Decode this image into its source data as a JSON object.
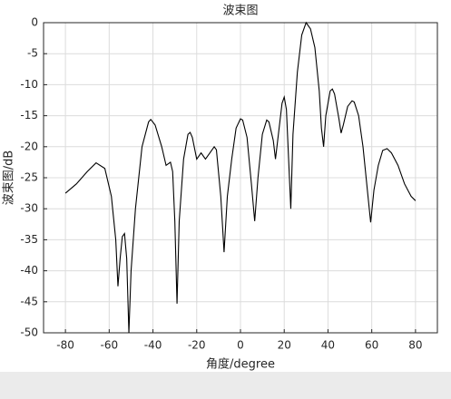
{
  "chart_data": {
    "type": "line",
    "title": "波束图",
    "xlabel": "角度/degree",
    "ylabel": "波束图/dB",
    "xlim": [
      -90,
      90
    ],
    "ylim": [
      -50,
      0
    ],
    "xticks": [
      -80,
      -60,
      -40,
      -20,
      0,
      20,
      40,
      60,
      80
    ],
    "yticks": [
      0,
      -5,
      -10,
      -15,
      -20,
      -25,
      -30,
      -35,
      -40,
      -45,
      -50
    ],
    "grid": true,
    "x": [
      -80,
      -75,
      -70,
      -66,
      -62,
      -59,
      -57,
      -56,
      -55,
      -54,
      -53,
      -52,
      -51,
      -50,
      -48,
      -45,
      -42,
      -41,
      -39,
      -36,
      -34,
      -32,
      -31,
      -30,
      -29,
      -28,
      -26,
      -24,
      -23,
      -22,
      -20,
      -19,
      -18,
      -16,
      -14,
      -12,
      -11,
      -9,
      -7.5,
      -6,
      -4,
      -2,
      0,
      1,
      3,
      5,
      6.5,
      8,
      10,
      12,
      13,
      15,
      16,
      17,
      19,
      20,
      21,
      23,
      24,
      26,
      28,
      30,
      32,
      34,
      36,
      37,
      38,
      39,
      41,
      42,
      43,
      45,
      46,
      47,
      49,
      51,
      52,
      54,
      56,
      58,
      59.5,
      61,
      63,
      65,
      67,
      69,
      72,
      75,
      78,
      80
    ],
    "series": [
      {
        "color": "#000000",
        "values": [
          -27.5,
          -26,
          -24,
          -22.6,
          -23.5,
          -28,
          -35,
          -42.5,
          -38,
          -34.5,
          -34,
          -38,
          -50,
          -40,
          -30,
          -20,
          -16,
          -15.6,
          -16.5,
          -20,
          -23,
          -22.5,
          -24,
          -32,
          -45.3,
          -32,
          -22,
          -18,
          -17.7,
          -18.5,
          -22,
          -21.5,
          -21,
          -22,
          -21,
          -20,
          -20.5,
          -28,
          -37,
          -28,
          -22,
          -17,
          -15.5,
          -15.7,
          -18.5,
          -26,
          -32,
          -25,
          -18,
          -15.7,
          -16,
          -19,
          -22,
          -19,
          -13,
          -12,
          -14,
          -30,
          -18,
          -8,
          -2,
          0,
          -1,
          -4,
          -11,
          -17,
          -20,
          -15,
          -11,
          -10.7,
          -11.5,
          -15.5,
          -17.8,
          -16.5,
          -13.5,
          -12.6,
          -12.8,
          -15,
          -20,
          -27,
          -32.2,
          -27,
          -23,
          -20.6,
          -20.3,
          -21,
          -23,
          -26,
          -28,
          -28.7
        ]
      }
    ]
  }
}
